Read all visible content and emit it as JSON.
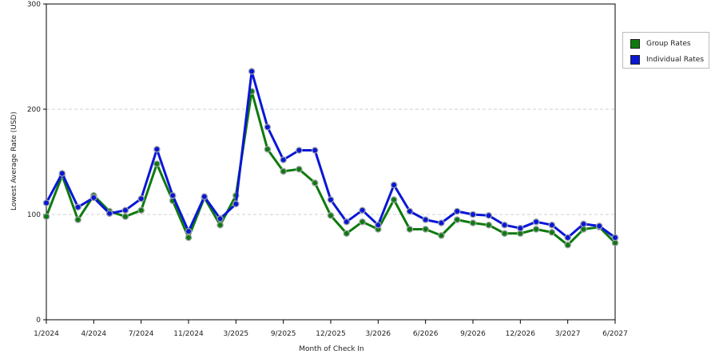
{
  "chart_data": {
    "type": "line",
    "xlabel": "Month of Check In",
    "ylabel": "Lowest Average Rate (USD)",
    "ylim": [
      0,
      300
    ],
    "yticks": [
      0,
      100,
      200,
      300
    ],
    "grid": true,
    "legend_position": "right",
    "x_tick_labels": [
      "1/2024",
      "4/2024",
      "7/2024",
      "11/2024",
      "3/2025",
      "9/2025",
      "12/2025",
      "3/2026",
      "6/2026",
      "9/2026",
      "12/2026",
      "3/2027",
      "6/2027"
    ],
    "x_tick_index": [
      0,
      3,
      6,
      9,
      12,
      15,
      18,
      21,
      24,
      27,
      30,
      33,
      36
    ],
    "series": [
      {
        "name": "Group Rates",
        "color": "#0e7a0e",
        "values": [
          98,
          137,
          95,
          118,
          103,
          98,
          104,
          148,
          113,
          78,
          116,
          90,
          118,
          217,
          162,
          141,
          143,
          130,
          99,
          82,
          93,
          86,
          114,
          86,
          86,
          80,
          95,
          92,
          90,
          82,
          82,
          86,
          83,
          71,
          86,
          88,
          73
        ]
      },
      {
        "name": "Individual Rates",
        "color": "#0a16d6",
        "values": [
          111,
          139,
          107,
          116,
          101,
          104,
          115,
          162,
          118,
          84,
          117,
          96,
          110,
          236,
          183,
          152,
          161,
          161,
          114,
          93,
          104,
          90,
          128,
          103,
          95,
          92,
          103,
          100,
          99,
          90,
          87,
          93,
          90,
          78,
          91,
          89,
          78
        ]
      }
    ]
  }
}
